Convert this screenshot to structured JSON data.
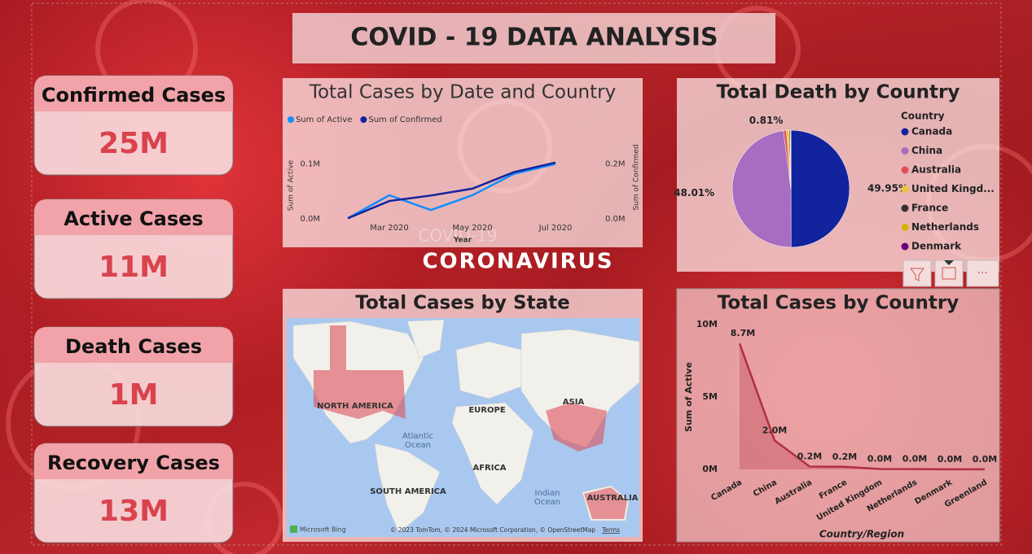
{
  "header": {
    "title": "COVID - 19 DATA ANALYSIS"
  },
  "cards": [
    {
      "label": "Confirmed Cases",
      "value": "25M"
    },
    {
      "label": "Active Cases",
      "value": "11M"
    },
    {
      "label": "Death Cases",
      "value": "1M"
    },
    {
      "label": "Recovery Cases",
      "value": "13M"
    }
  ],
  "banner": {
    "subtitle": "COVID-19",
    "title": "CORONAVIRUS"
  },
  "chart_data": [
    {
      "type": "line",
      "title": "Total Cases by Date and Country",
      "x_label": "Year",
      "y_label": "Sum of Active",
      "y2_label": "Sum of Confirmed",
      "x": [
        "2020-02",
        "2020-03",
        "2020-04",
        "2020-05",
        "2020-06",
        "2020-07"
      ],
      "xlim": [
        "2020-01",
        "2020-08"
      ],
      "xticks": [
        {
          "value": "2020-03",
          "label": "Mar 2020"
        },
        {
          "value": "2020-05",
          "label": "May 2020"
        },
        {
          "value": "2020-07",
          "label": "Jul 2020"
        }
      ],
      "ylim": [
        0,
        120000
      ],
      "yticks": [
        {
          "value": 0,
          "label": "0.0M"
        },
        {
          "value": 100000,
          "label": "0.1M"
        }
      ],
      "y2lim": [
        0,
        240000
      ],
      "y2ticks": [
        {
          "value": 0,
          "label": "0.0M"
        },
        {
          "value": 200000,
          "label": "0.2M"
        }
      ],
      "series": [
        {
          "name": "Sum of Active",
          "color": "#118dff",
          "values": [
            1000,
            43000,
            16000,
            43000,
            82000,
            100000
          ]
        },
        {
          "name": "Sum of Confirmed",
          "color": "#12239e",
          "axis": "y2",
          "values": [
            2000,
            65000,
            85000,
            110000,
            170000,
            205000
          ]
        }
      ]
    },
    {
      "type": "pie",
      "title": "Total Death by Country",
      "legend_title": "Country",
      "categories": [
        "Canada",
        "China",
        "Australia",
        "United Kingd...",
        "France",
        "Netherlands",
        "Denmark"
      ],
      "values": [
        49.95,
        48.01,
        0.81,
        0.7,
        0.3,
        0.2,
        0.03
      ],
      "value_labels": [
        "49.95%",
        "48.01%",
        "0.81%",
        null,
        null,
        null,
        null
      ],
      "colors": [
        "#12239e",
        "#a66dc0",
        "#e44c5a",
        "#e8c53a",
        "#333333",
        "#d4b200",
        "#6b007b"
      ]
    },
    {
      "type": "area",
      "title": "Total Cases by Country",
      "x_label": "Country/Region",
      "y_label": "Sum of Active",
      "categories": [
        "Canada",
        "China",
        "Australia",
        "France",
        "United Kingdom",
        "Netherlands",
        "Denmark",
        "Greenland"
      ],
      "values": [
        8700000,
        2000000,
        200000,
        180000,
        30000,
        20000,
        10000,
        5000
      ],
      "value_labels": [
        "8.7M",
        "2.0M",
        "0.2M",
        "0.2M",
        "0.0M",
        "0.0M",
        "0.0M",
        "0.0M"
      ],
      "color": "#b03040",
      "ylim": [
        0,
        10000000
      ],
      "yticks": [
        {
          "value": 0,
          "label": "0M"
        },
        {
          "value": 5000000,
          "label": "5M"
        },
        {
          "value": 10000000,
          "label": "10M"
        }
      ]
    }
  ],
  "map": {
    "title": "Total Cases by State",
    "labels": [
      "NORTH AMERICA",
      "EUROPE",
      "ASIA",
      "AFRICA",
      "SOUTH AMERICA",
      "AUSTRALIA"
    ],
    "ocean_labels": [
      [
        "Atlantic",
        "Ocean"
      ],
      [
        "Indian",
        "Ocean"
      ]
    ],
    "logo": "Microsoft Bing",
    "attribution": "© 2023 TomTom, © 2024 Microsoft Corporation, © OpenStreetMap",
    "terms": "Terms"
  }
}
